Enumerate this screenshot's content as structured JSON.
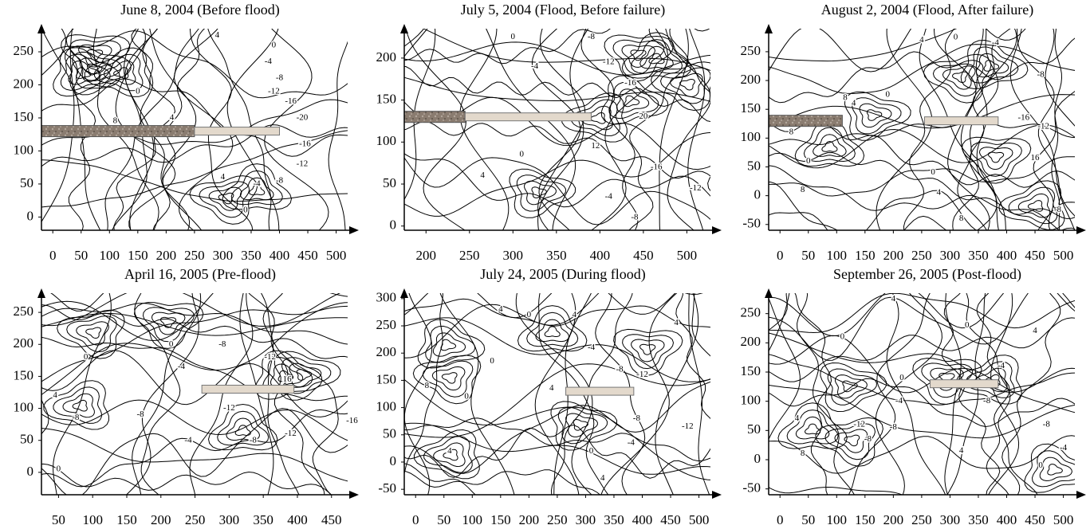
{
  "chart_data": [
    {
      "type": "contour",
      "title": "June 8, 2004 (Before flood)",
      "xlim": [
        -20,
        540
      ],
      "ylim": [
        -20,
        285
      ],
      "xticks": [
        0,
        50,
        100,
        150,
        200,
        250,
        300,
        350,
        400,
        450,
        500
      ],
      "yticks": [
        0,
        50,
        100,
        150,
        200,
        250
      ],
      "contour_labels": [
        4,
        0,
        -4,
        -8,
        -12,
        -16,
        -20,
        0,
        8,
        4,
        4,
        -4,
        -8,
        -12,
        -16,
        0
      ]
    },
    {
      "type": "contour",
      "title": "July 5, 2004 (Flood, Before failure)",
      "xlim": [
        175,
        540
      ],
      "ylim": [
        -5,
        235
      ],
      "xticks": [
        200,
        250,
        300,
        350,
        400,
        450,
        500
      ],
      "yticks": [
        0,
        50,
        100,
        150,
        200
      ],
      "contour_labels": [
        0,
        -4,
        -8,
        -12,
        -16,
        20,
        12,
        0,
        4,
        -4,
        -8,
        -16,
        -12
      ]
    },
    {
      "type": "contour",
      "title": "August 2, 2004 (Flood, After failure)",
      "xlim": [
        -20,
        540
      ],
      "ylim": [
        -60,
        290
      ],
      "xticks": [
        0,
        50,
        100,
        150,
        200,
        250,
        300,
        350,
        400,
        450,
        500
      ],
      "yticks": [
        -50,
        0,
        50,
        100,
        150,
        200,
        250
      ],
      "contour_labels": [
        4,
        0,
        -4,
        -8,
        0,
        4,
        8,
        8,
        0,
        8,
        -16,
        -12,
        16,
        0,
        4,
        8,
        -8
      ]
    },
    {
      "type": "contour",
      "title": "April 16, 2005 (Pre-flood)",
      "xlim": [
        25,
        490
      ],
      "ylim": [
        -35,
        280
      ],
      "xticks": [
        50,
        100,
        150,
        200,
        250,
        300,
        350,
        400,
        450
      ],
      "yticks": [
        0,
        50,
        100,
        150,
        200,
        250
      ],
      "contour_labels": [
        0,
        0,
        -4,
        -8,
        -12,
        16,
        -12,
        -8,
        -8,
        -4,
        -8,
        -12,
        -16,
        4,
        0
      ]
    },
    {
      "type": "contour",
      "title": "July 24, 2005 (During flood)",
      "xlim": [
        -20,
        540
      ],
      "ylim": [
        -60,
        310
      ],
      "xticks": [
        0,
        50,
        100,
        150,
        200,
        250,
        300,
        350,
        400,
        450,
        500
      ],
      "yticks": [
        -50,
        0,
        50,
        100,
        150,
        200,
        250,
        300
      ],
      "contour_labels": [
        4,
        0,
        4,
        4,
        0,
        -4,
        -8,
        -12,
        4,
        8,
        0,
        -8,
        -4,
        -12,
        0,
        4,
        4
      ]
    },
    {
      "type": "contour",
      "title": "September 26, 2005 (Post-flood)",
      "xlim": [
        -20,
        540
      ],
      "ylim": [
        -60,
        285
      ],
      "xticks": [
        0,
        50,
        100,
        150,
        200,
        250,
        300,
        350,
        400,
        450,
        500
      ],
      "yticks": [
        -50,
        0,
        50,
        100,
        150,
        200,
        250
      ],
      "contour_labels": [
        4,
        0,
        0,
        4,
        -4,
        0,
        -4,
        -8,
        -8,
        -12,
        -8,
        -8,
        4,
        0,
        -4,
        4,
        8
      ]
    }
  ]
}
